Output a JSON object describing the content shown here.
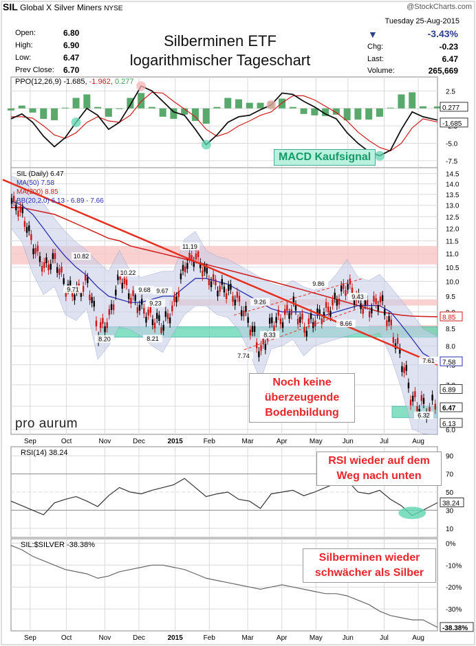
{
  "header": {
    "symbol": "SIL",
    "name": "Global X Silver Miners",
    "exchange": "NYSE",
    "source": "@StockCharts.com",
    "date": "Tuesday  25-Aug-2015",
    "change_pct": "-3.43%",
    "quote_labels": {
      "open": "Open:",
      "high": "High:",
      "low": "Low:",
      "prev": "Prev Close:",
      "chg": "Chg:",
      "last": "Last:",
      "volume": "Volume:"
    },
    "quote_values": {
      "open": "6.80",
      "high": "6.90",
      "low": "6.47",
      "prev": "6.70",
      "chg": "-0.23",
      "last": "6.47",
      "volume": "265,669"
    }
  },
  "annotations": {
    "title_line1": "Silberminen ETF",
    "title_line2": "logarithmischer Tageschart",
    "macd_signal": "MACD Kaufsignal",
    "no_bottom": [
      "Noch keine",
      "überzeugende",
      "Bodenbildung"
    ],
    "rsi_down": [
      "RSI wieder auf dem",
      "Weg nach unten"
    ],
    "weaker": [
      "Silberminen wieder",
      "schwächer als Silber"
    ],
    "logo": "pro aurum"
  },
  "colors": {
    "price_up": "#000000",
    "price_down": "#d11414",
    "ma50": "#2b2fae",
    "ma200": "#d01a1a",
    "bb_fill": "#c9cfe8",
    "trendline": "#e53020",
    "resistance": "#f7c6c6",
    "support": "#5fd6b0",
    "ppo_hist": "#3d9a52",
    "grid": "#d9d9d9"
  },
  "chart_data": [
    {
      "type": "line",
      "panel": "PPO",
      "legend": "PPO(12,26,9) -1.685, -1.962, 0.277",
      "legend_parts": [
        "PPO(12,26,9) -1.685,",
        "-1.962,",
        "0.277"
      ],
      "yticks": [
        "2.5",
        "0.0",
        "-2.5",
        "-5.0",
        "-7.5"
      ],
      "ylim": [
        -8.5,
        4.5
      ],
      "last_labels": [
        "0.277",
        "-1.685"
      ],
      "x": [
        0,
        6,
        12,
        18,
        24,
        30,
        36,
        42,
        48,
        54,
        60,
        66,
        72,
        78,
        84,
        90,
        96,
        102,
        108,
        114,
        120,
        126,
        132,
        138,
        144,
        150,
        156,
        162,
        168,
        174,
        180,
        186,
        192,
        198,
        204,
        210,
        216,
        222,
        228,
        236
      ],
      "series": [
        {
          "name": "PPO",
          "values": [
            -1.5,
            -0.8,
            -2.0,
            -4.0,
            -5.5,
            -4.2,
            -2.0,
            0.0,
            -1.0,
            -3.0,
            -2.0,
            0.5,
            3.2,
            2.5,
            1.0,
            -0.5,
            -1.0,
            -3.0,
            -5.2,
            -3.8,
            -2.0,
            -1.2,
            -1.0,
            -0.2,
            0.5,
            2.2,
            2.0,
            1.0,
            0.2,
            -0.8,
            -1.5,
            -3.5,
            -5.0,
            -6.2,
            -6.8,
            -6.0,
            -3.0,
            -0.5,
            -1.2,
            -1.685
          ]
        },
        {
          "name": "Signal",
          "values": [
            -1.2,
            -1.2,
            -1.4,
            -2.5,
            -3.8,
            -4.3,
            -3.5,
            -2.0,
            -1.2,
            -1.8,
            -2.0,
            -1.0,
            1.0,
            2.3,
            2.2,
            1.0,
            -0.1,
            -1.2,
            -3.0,
            -4.0,
            -3.5,
            -2.5,
            -1.8,
            -1.0,
            -0.5,
            0.8,
            1.8,
            1.8,
            1.2,
            0.3,
            -0.6,
            -1.8,
            -3.4,
            -4.6,
            -5.6,
            -6.1,
            -5.0,
            -2.8,
            -1.5,
            -1.962
          ]
        },
        {
          "name": "Histogram",
          "values": [
            -0.3,
            0.4,
            -0.6,
            -1.5,
            -1.7,
            0.1,
            1.5,
            2.0,
            0.2,
            -1.2,
            0.0,
            1.5,
            2.2,
            0.2,
            -1.2,
            -1.5,
            -0.9,
            -1.8,
            -2.2,
            0.2,
            1.5,
            1.3,
            0.8,
            0.8,
            1.0,
            1.4,
            0.2,
            -0.8,
            -1.0,
            -1.1,
            -0.9,
            -1.7,
            -1.6,
            -1.6,
            -1.2,
            0.1,
            2.0,
            2.3,
            0.3,
            0.277
          ]
        }
      ],
      "markers": [
        "circle",
        "circle",
        "circle",
        "circle",
        "circle"
      ]
    },
    {
      "type": "line",
      "panel": "Price",
      "scale": "log",
      "legend": [
        "SIL (Daily) 6.47",
        "MA(50) 7.58",
        "MA(200) 8.85",
        "BB(20,2.0) 6.13 - 6.89 - 7.66"
      ],
      "yticks": [
        "14.5",
        "14.0",
        "13.5",
        "13.0",
        "12.5",
        "12.0",
        "11.5",
        "11.0",
        "10.5",
        "10.0",
        "9.5",
        "9.0",
        "8.5",
        "8.0",
        "7.5",
        "7.0",
        "6.5",
        "6.0"
      ],
      "ylim": [
        5.9,
        14.8
      ],
      "price_labels": [
        "10.82",
        "10.22",
        "9.71",
        "9.68",
        "9.23",
        "9.67",
        "11.19",
        "9.26",
        "9.86",
        "9.43",
        "8.66",
        "8.33",
        "8.20",
        "8.21",
        "7.74",
        "7.61",
        "6.32"
      ],
      "right_labels": [
        "8.85",
        "7.58",
        "6.89",
        "6.47",
        "6.13"
      ],
      "x": [
        0,
        6,
        12,
        18,
        24,
        30,
        36,
        42,
        48,
        54,
        60,
        66,
        72,
        78,
        84,
        90,
        96,
        102,
        108,
        114,
        120,
        126,
        132,
        138,
        144,
        150,
        156,
        162,
        168,
        174,
        180,
        186,
        192,
        198,
        204,
        210,
        216,
        222,
        228,
        236
      ],
      "series": [
        {
          "name": "SIL",
          "values": [
            13.2,
            12.6,
            11.3,
            10.5,
            10.8,
            9.8,
            9.6,
            10.0,
            8.4,
            8.8,
            10.2,
            9.5,
            9.1,
            8.8,
            8.6,
            9.2,
            10.6,
            10.9,
            10.2,
            9.8,
            9.7,
            9.3,
            8.6,
            7.8,
            8.7,
            8.8,
            9.2,
            8.5,
            8.8,
            9.0,
            9.4,
            9.9,
            9.3,
            9.1,
            9.4,
            8.5,
            7.6,
            6.6,
            6.5,
            6.47
          ]
        },
        {
          "name": "MA(50)",
          "values": [
            13.2,
            13.0,
            12.6,
            12.0,
            11.4,
            10.9,
            10.5,
            10.2,
            9.8,
            9.5,
            9.4,
            9.3,
            9.3,
            9.4,
            9.5,
            9.5,
            9.8,
            10.1,
            10.1,
            10.0,
            9.9,
            9.7,
            9.5,
            9.3,
            9.1,
            9.0,
            9.0,
            9.0,
            8.9,
            8.9,
            9.0,
            9.1,
            9.2,
            9.2,
            9.2,
            9.0,
            8.6,
            8.2,
            7.8,
            7.58
          ]
        },
        {
          "name": "MA(200)",
          "values": [
            12.9,
            12.9,
            12.8,
            12.7,
            12.6,
            12.4,
            12.2,
            12.0,
            11.8,
            11.6,
            11.5,
            11.3,
            11.2,
            11.1,
            11.0,
            10.9,
            10.8,
            10.7,
            10.6,
            10.5,
            10.4,
            10.3,
            10.2,
            10.1,
            10.0,
            9.9,
            9.8,
            9.7,
            9.6,
            9.5,
            9.4,
            9.3,
            9.2,
            9.1,
            9.0,
            8.95,
            8.9,
            8.87,
            8.86,
            8.85
          ]
        }
      ],
      "xlabels": [
        "Sep",
        "Oct",
        "Nov",
        "Dec",
        "2015",
        "Feb",
        "Mar",
        "Apr",
        "May",
        "Jun",
        "Jul",
        "Aug"
      ]
    },
    {
      "type": "line",
      "panel": "RSI",
      "legend": "RSI(14) 38.24",
      "yticks": [
        "90",
        "70",
        "50",
        "30",
        "10"
      ],
      "ylim": [
        0,
        100
      ],
      "last_label": "38.24",
      "x": [
        0,
        6,
        12,
        18,
        24,
        30,
        36,
        42,
        48,
        54,
        60,
        66,
        72,
        78,
        84,
        90,
        96,
        102,
        108,
        114,
        120,
        126,
        132,
        138,
        144,
        150,
        156,
        162,
        168,
        174,
        180,
        186,
        192,
        198,
        204,
        210,
        216,
        222,
        228,
        236
      ],
      "series": [
        {
          "name": "RSI",
          "values": [
            40,
            35,
            30,
            25,
            38,
            42,
            45,
            40,
            34,
            46,
            55,
            50,
            48,
            52,
            55,
            58,
            65,
            55,
            45,
            48,
            50,
            42,
            40,
            32,
            48,
            50,
            52,
            46,
            50,
            55,
            60,
            63,
            50,
            48,
            52,
            42,
            35,
            24,
            30,
            38.24
          ]
        }
      ]
    },
    {
      "type": "line",
      "panel": "SIL:$SILVER",
      "legend": "SIL:$SILVER -38.38%",
      "yticks": [
        "0%",
        "-10%",
        "-20%",
        "-30%"
      ],
      "ylim": [
        -40,
        2
      ],
      "last_label": "-38.38%",
      "x": [
        0,
        6,
        12,
        18,
        24,
        30,
        36,
        42,
        48,
        54,
        60,
        66,
        72,
        78,
        84,
        90,
        96,
        102,
        108,
        114,
        120,
        126,
        132,
        138,
        144,
        150,
        156,
        162,
        168,
        174,
        180,
        186,
        192,
        198,
        204,
        210,
        216,
        222,
        228,
        236
      ],
      "series": [
        {
          "name": "SIL:$SILVER",
          "values": [
            -1,
            -3,
            -6,
            -8,
            -10,
            -12,
            -13,
            -14,
            -16,
            -15,
            -13,
            -12,
            -11,
            -10,
            -10,
            -11,
            -12,
            -14,
            -16,
            -17,
            -18,
            -19,
            -20,
            -21,
            -20,
            -19,
            -20,
            -21,
            -22,
            -23,
            -23,
            -24,
            -26,
            -28,
            -31,
            -33,
            -34,
            -35,
            -35,
            -38.38
          ]
        }
      ],
      "xlabels": [
        "Sep",
        "Oct",
        "Nov",
        "Dec",
        "2015",
        "Feb",
        "Mar",
        "Apr",
        "May",
        "Jun",
        "Jul",
        "Aug"
      ]
    }
  ]
}
